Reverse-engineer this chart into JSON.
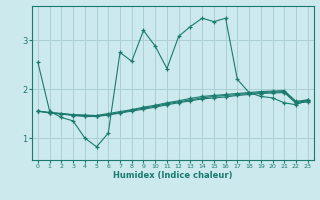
{
  "title": "",
  "xlabel": "Humidex (Indice chaleur)",
  "bg_color": "#cce9ed",
  "grid_color": "#aacfd4",
  "line_color": "#1a7a6e",
  "x_ticks": [
    0,
    1,
    2,
    3,
    4,
    5,
    6,
    7,
    8,
    9,
    10,
    11,
    12,
    13,
    14,
    15,
    16,
    17,
    18,
    19,
    20,
    21,
    22,
    23
  ],
  "y_ticks": [
    1,
    2,
    3
  ],
  "ylim": [
    0.55,
    3.7
  ],
  "xlim": [
    -0.5,
    23.5
  ],
  "line1_x": [
    0,
    1,
    2,
    3,
    4,
    5,
    6,
    7,
    8,
    9,
    10,
    11,
    12,
    13,
    14,
    15,
    16,
    17,
    18,
    19,
    20,
    21,
    22,
    23
  ],
  "line1_y": [
    2.55,
    1.55,
    1.42,
    1.35,
    1.0,
    0.82,
    1.1,
    2.75,
    2.57,
    3.2,
    2.88,
    2.42,
    3.08,
    3.28,
    3.45,
    3.38,
    3.45,
    2.2,
    1.93,
    1.85,
    1.82,
    1.72,
    1.68,
    1.78
  ],
  "line2_x": [
    0,
    1,
    2,
    3,
    4,
    5,
    6,
    7,
    8,
    9,
    10,
    11,
    12,
    13,
    14,
    15,
    16,
    17,
    18,
    19,
    20,
    21,
    22,
    23
  ],
  "line2_y": [
    1.55,
    1.52,
    1.5,
    1.48,
    1.47,
    1.46,
    1.5,
    1.54,
    1.58,
    1.63,
    1.67,
    1.72,
    1.76,
    1.81,
    1.85,
    1.87,
    1.89,
    1.91,
    1.93,
    1.95,
    1.96,
    1.97,
    1.75,
    1.78
  ],
  "line3_x": [
    0,
    1,
    2,
    3,
    4,
    5,
    6,
    7,
    8,
    9,
    10,
    11,
    12,
    13,
    14,
    15,
    16,
    17,
    18,
    19,
    20,
    21,
    22,
    23
  ],
  "line3_y": [
    1.55,
    1.52,
    1.5,
    1.47,
    1.46,
    1.45,
    1.48,
    1.52,
    1.57,
    1.61,
    1.65,
    1.7,
    1.74,
    1.78,
    1.82,
    1.85,
    1.87,
    1.89,
    1.91,
    1.93,
    1.94,
    1.95,
    1.73,
    1.76
  ],
  "line4_x": [
    0,
    1,
    2,
    3,
    4,
    5,
    6,
    7,
    8,
    9,
    10,
    11,
    12,
    13,
    14,
    15,
    16,
    17,
    18,
    19,
    20,
    21,
    22,
    23
  ],
  "line4_y": [
    1.55,
    1.51,
    1.49,
    1.46,
    1.44,
    1.44,
    1.47,
    1.51,
    1.55,
    1.59,
    1.63,
    1.68,
    1.72,
    1.76,
    1.8,
    1.82,
    1.84,
    1.87,
    1.89,
    1.91,
    1.92,
    1.93,
    1.71,
    1.74
  ]
}
